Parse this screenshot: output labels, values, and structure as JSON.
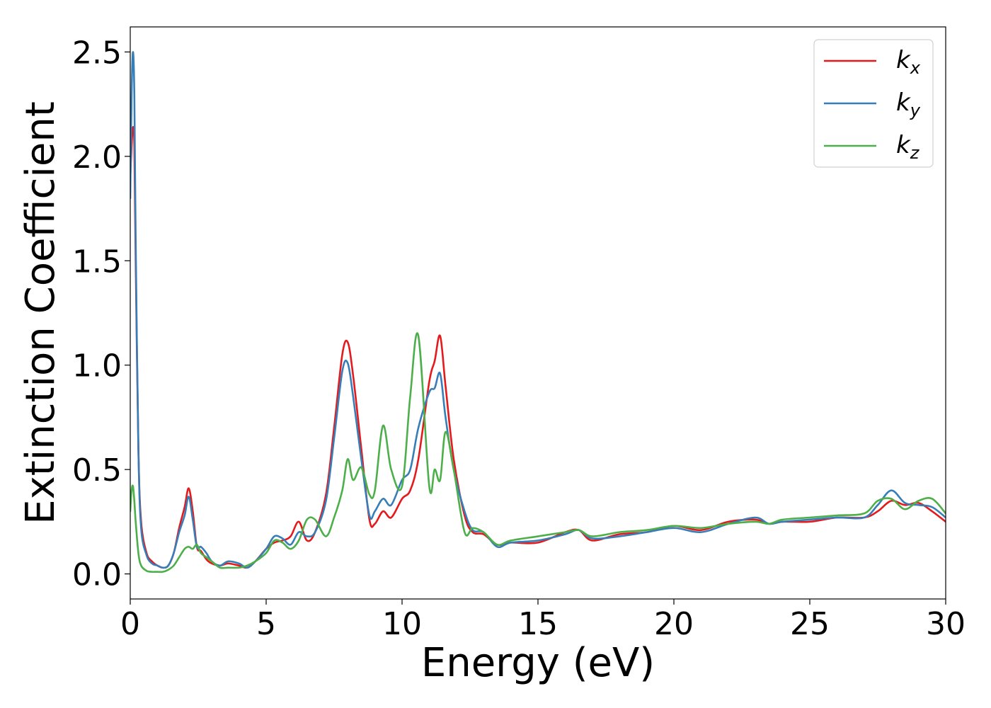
{
  "chart_data": {
    "type": "line",
    "xlabel": "Energy (eV)",
    "ylabel": "Extinction Coefficient",
    "xlim": [
      0,
      30
    ],
    "ylim": [
      -0.12,
      2.62
    ],
    "xticks": [
      "0",
      "5",
      "10",
      "15",
      "20",
      "25",
      "30"
    ],
    "yticks": [
      "0.0",
      "0.5",
      "1.0",
      "1.5",
      "2.0",
      "2.5"
    ],
    "grid": false,
    "legend": {
      "placement": "top-right"
    },
    "series": [
      {
        "name": "k_x",
        "label_base": "k",
        "label_sub": "x",
        "color": "#e41a1c",
        "x": [
          0.0,
          0.05,
          0.1,
          0.15,
          0.2,
          0.3,
          0.4,
          0.6,
          0.8,
          1.0,
          1.2,
          1.4,
          1.6,
          1.8,
          2.0,
          2.15,
          2.3,
          2.45,
          2.6,
          2.8,
          3.0,
          3.3,
          3.6,
          4.0,
          4.3,
          4.6,
          5.0,
          5.3,
          5.6,
          5.9,
          6.2,
          6.5,
          6.8,
          7.2,
          7.5,
          7.8,
          8.0,
          8.2,
          8.5,
          8.8,
          9.0,
          9.3,
          9.6,
          10.0,
          10.3,
          10.6,
          11.0,
          11.2,
          11.4,
          11.6,
          11.9,
          12.3,
          12.6,
          13.0,
          13.5,
          14.0,
          15.0,
          16.0,
          16.5,
          17.0,
          18.0,
          19.0,
          20.0,
          21.0,
          22.0,
          23.0,
          23.5,
          24.0,
          25.0,
          26.0,
          27.0,
          27.5,
          28.0,
          28.5,
          29.0,
          29.5,
          30.0
        ],
        "y": [
          1.9,
          2.05,
          2.14,
          2.05,
          1.5,
          0.6,
          0.25,
          0.1,
          0.06,
          0.04,
          0.03,
          0.04,
          0.1,
          0.22,
          0.32,
          0.41,
          0.3,
          0.13,
          0.11,
          0.07,
          0.05,
          0.04,
          0.05,
          0.04,
          0.03,
          0.06,
          0.12,
          0.15,
          0.16,
          0.18,
          0.25,
          0.16,
          0.2,
          0.38,
          0.7,
          1.05,
          1.11,
          0.95,
          0.6,
          0.26,
          0.24,
          0.3,
          0.27,
          0.36,
          0.4,
          0.55,
          0.92,
          1.02,
          1.14,
          0.9,
          0.55,
          0.28,
          0.2,
          0.19,
          0.14,
          0.15,
          0.15,
          0.2,
          0.21,
          0.16,
          0.19,
          0.2,
          0.23,
          0.21,
          0.25,
          0.26,
          0.24,
          0.25,
          0.25,
          0.27,
          0.27,
          0.3,
          0.35,
          0.33,
          0.34,
          0.3,
          0.25
        ]
      },
      {
        "name": "k_y",
        "label_base": "k",
        "label_sub": "y",
        "color": "#377eb8",
        "x": [
          0.0,
          0.05,
          0.1,
          0.15,
          0.2,
          0.3,
          0.4,
          0.6,
          0.8,
          1.0,
          1.2,
          1.4,
          1.6,
          1.8,
          2.0,
          2.15,
          2.3,
          2.45,
          2.6,
          2.8,
          3.0,
          3.3,
          3.6,
          4.0,
          4.3,
          4.6,
          5.0,
          5.3,
          5.6,
          5.9,
          6.2,
          6.5,
          6.8,
          7.2,
          7.5,
          7.8,
          8.0,
          8.2,
          8.5,
          8.8,
          9.0,
          9.3,
          9.6,
          10.0,
          10.3,
          10.6,
          11.0,
          11.2,
          11.4,
          11.6,
          11.9,
          12.3,
          12.6,
          13.0,
          13.5,
          14.0,
          15.0,
          16.0,
          16.5,
          17.0,
          18.0,
          19.0,
          20.0,
          21.0,
          22.0,
          23.0,
          23.5,
          24.0,
          25.0,
          26.0,
          27.0,
          27.5,
          28.0,
          28.5,
          29.0,
          29.5,
          30.0
        ],
        "y": [
          1.8,
          2.3,
          2.5,
          2.3,
          1.6,
          0.6,
          0.22,
          0.09,
          0.05,
          0.04,
          0.03,
          0.04,
          0.1,
          0.2,
          0.28,
          0.37,
          0.26,
          0.13,
          0.13,
          0.1,
          0.06,
          0.04,
          0.06,
          0.05,
          0.03,
          0.06,
          0.12,
          0.18,
          0.17,
          0.14,
          0.2,
          0.18,
          0.2,
          0.35,
          0.65,
          0.97,
          1.01,
          0.85,
          0.55,
          0.28,
          0.3,
          0.36,
          0.33,
          0.45,
          0.5,
          0.7,
          0.87,
          0.89,
          0.96,
          0.75,
          0.5,
          0.3,
          0.21,
          0.2,
          0.13,
          0.15,
          0.16,
          0.19,
          0.21,
          0.17,
          0.18,
          0.2,
          0.22,
          0.2,
          0.24,
          0.27,
          0.24,
          0.25,
          0.26,
          0.27,
          0.27,
          0.33,
          0.4,
          0.34,
          0.33,
          0.32,
          0.27
        ]
      },
      {
        "name": "k_z",
        "label_base": "k",
        "label_sub": "z",
        "color": "#4daf4a",
        "x": [
          0.0,
          0.05,
          0.1,
          0.15,
          0.2,
          0.3,
          0.4,
          0.6,
          0.8,
          1.0,
          1.2,
          1.4,
          1.6,
          1.8,
          2.0,
          2.15,
          2.3,
          2.45,
          2.6,
          2.8,
          3.0,
          3.3,
          3.6,
          4.0,
          4.3,
          4.6,
          5.0,
          5.3,
          5.6,
          5.9,
          6.2,
          6.5,
          6.8,
          7.2,
          7.5,
          7.8,
          8.0,
          8.2,
          8.5,
          8.8,
          9.0,
          9.3,
          9.6,
          10.0,
          10.3,
          10.6,
          11.0,
          11.2,
          11.4,
          11.6,
          11.9,
          12.3,
          12.6,
          13.0,
          13.5,
          14.0,
          15.0,
          16.0,
          16.5,
          17.0,
          18.0,
          19.0,
          20.0,
          21.0,
          22.0,
          23.0,
          23.5,
          24.0,
          25.0,
          26.0,
          27.0,
          27.5,
          28.0,
          28.5,
          29.0,
          29.5,
          30.0
        ],
        "y": [
          0.3,
          0.4,
          0.42,
          0.35,
          0.25,
          0.1,
          0.04,
          0.015,
          0.01,
          0.01,
          0.01,
          0.02,
          0.04,
          0.08,
          0.12,
          0.13,
          0.12,
          0.14,
          0.1,
          0.08,
          0.06,
          0.03,
          0.03,
          0.03,
          0.04,
          0.06,
          0.1,
          0.16,
          0.15,
          0.12,
          0.16,
          0.26,
          0.26,
          0.18,
          0.27,
          0.4,
          0.55,
          0.45,
          0.51,
          0.38,
          0.4,
          0.71,
          0.5,
          0.42,
          0.85,
          1.14,
          0.42,
          0.5,
          0.45,
          0.68,
          0.5,
          0.2,
          0.22,
          0.2,
          0.14,
          0.16,
          0.18,
          0.2,
          0.21,
          0.18,
          0.2,
          0.21,
          0.23,
          0.22,
          0.24,
          0.25,
          0.24,
          0.26,
          0.27,
          0.28,
          0.29,
          0.35,
          0.36,
          0.31,
          0.35,
          0.36,
          0.29
        ]
      }
    ]
  }
}
